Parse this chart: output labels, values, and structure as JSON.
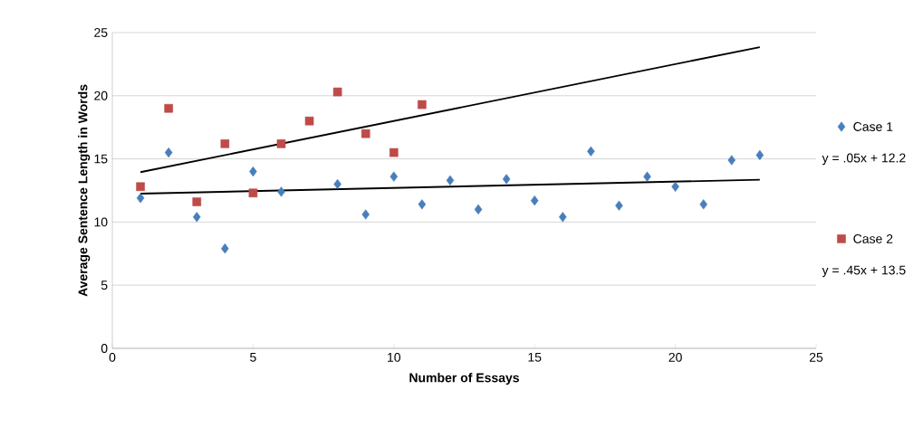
{
  "chart_data": {
    "type": "scatter",
    "xlabel": "Number of Essays",
    "ylabel": "Average Sentence Length in Words",
    "xlim": [
      0,
      25
    ],
    "ylim": [
      0,
      25
    ],
    "xticks": [
      0,
      5,
      10,
      15,
      20,
      25
    ],
    "yticks": [
      0,
      5,
      10,
      15,
      20,
      25
    ],
    "grid": "y",
    "legend": "right",
    "series": [
      {
        "name": "Case 1",
        "color": "#4a7ebb",
        "marker": "diamond",
        "x": [
          1,
          2,
          3,
          4,
          5,
          6,
          7,
          8,
          9,
          10,
          11,
          12,
          13,
          14,
          15,
          16,
          17,
          18,
          19,
          20,
          21,
          22,
          23
        ],
        "values": [
          11.9,
          15.5,
          10.4,
          7.9,
          14.0,
          12.4,
          null,
          13.0,
          10.6,
          13.6,
          11.4,
          13.3,
          11.0,
          13.4,
          11.7,
          10.4,
          15.6,
          11.3,
          13.6,
          12.8,
          11.4,
          14.9,
          15.3
        ]
      },
      {
        "name": "Case 2",
        "color": "#be4b48",
        "marker": "square",
        "x": [
          1,
          2,
          3,
          4,
          5,
          6,
          7,
          8,
          9,
          10,
          11
        ],
        "values": [
          12.8,
          19.0,
          11.6,
          16.2,
          12.3,
          16.2,
          18.0,
          20.3,
          17.0,
          15.5,
          19.3
        ]
      },
      {
        "type": "line",
        "color": "#000000",
        "marker": "none",
        "x": [
          1,
          23
        ],
        "values": [
          12.25,
          13.35
        ]
      },
      {
        "type": "line",
        "color": "#000000",
        "marker": "none",
        "x": [
          1,
          23
        ],
        "values": [
          13.95,
          23.85
        ]
      }
    ],
    "annotations": [
      "y = .05x + 12.2",
      "y = .45x + 13.5"
    ]
  }
}
